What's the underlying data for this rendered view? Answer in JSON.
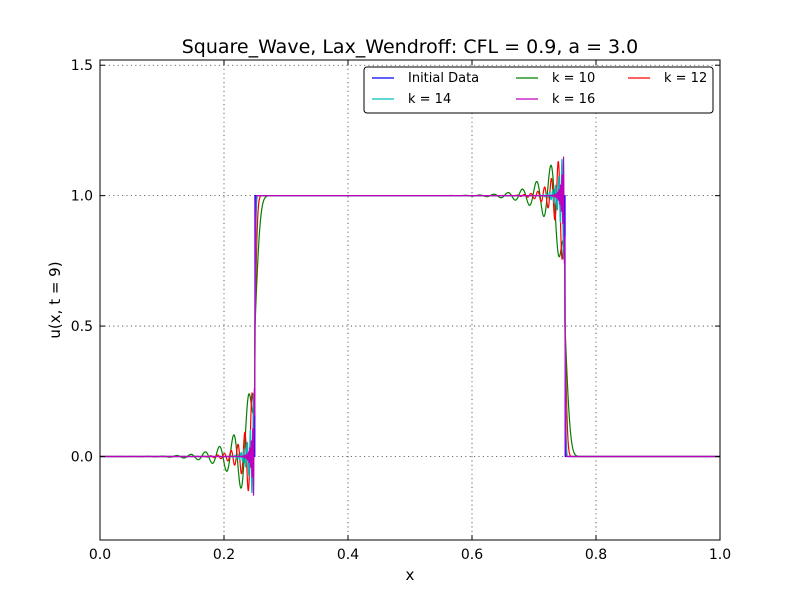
{
  "chart_data": {
    "type": "line",
    "title": "Square_Wave, Lax_Wendroff: CFL = 0.9, a = 3.0",
    "xlabel": "x",
    "ylabel": "u(x, t = 9)",
    "xlim": [
      0.0,
      1.0
    ],
    "ylim": [
      -0.32,
      1.52
    ],
    "xticks": [
      "0.0",
      "0.2",
      "0.4",
      "0.6",
      "0.8",
      "1.0"
    ],
    "xtick_values": [
      0.0,
      0.2,
      0.4,
      0.6,
      0.8,
      1.0
    ],
    "yticks": [
      "0.0",
      "0.5",
      "1.0",
      "1.5"
    ],
    "ytick_values": [
      0.0,
      0.5,
      1.0,
      1.5
    ],
    "grid": true,
    "legend_position": "top-right",
    "legend_columns": 3,
    "square_wave": {
      "left_edge": 0.25,
      "right_edge": 0.75,
      "low": 0.0,
      "high": 1.0
    },
    "series": [
      {
        "name": "Initial Data",
        "color": "#0000ff",
        "k": null,
        "undershoot": 0.0,
        "overshoot": 0.0,
        "decay": 1.0,
        "period": 1.0,
        "smear": 0.0008
      },
      {
        "name": "k = 10",
        "color": "#008000",
        "k": 10,
        "undershoot": 0.26,
        "overshoot": 0.25,
        "decay": 0.03,
        "period": 0.023,
        "smear": 0.0095
      },
      {
        "name": "k = 12",
        "color": "#ff0000",
        "k": 12,
        "undershoot": 0.26,
        "overshoot": 0.26,
        "decay": 0.016,
        "period": 0.011,
        "smear": 0.0045
      },
      {
        "name": "k = 14",
        "color": "#00bfbf",
        "k": 14,
        "undershoot": 0.26,
        "overshoot": 0.26,
        "decay": 0.008,
        "period": 0.005,
        "smear": 0.002
      },
      {
        "name": "k = 16",
        "color": "#bf00bf",
        "k": 16,
        "undershoot": 0.27,
        "overshoot": 0.27,
        "decay": 0.004,
        "period": 0.0024,
        "smear": 0.001
      }
    ]
  }
}
